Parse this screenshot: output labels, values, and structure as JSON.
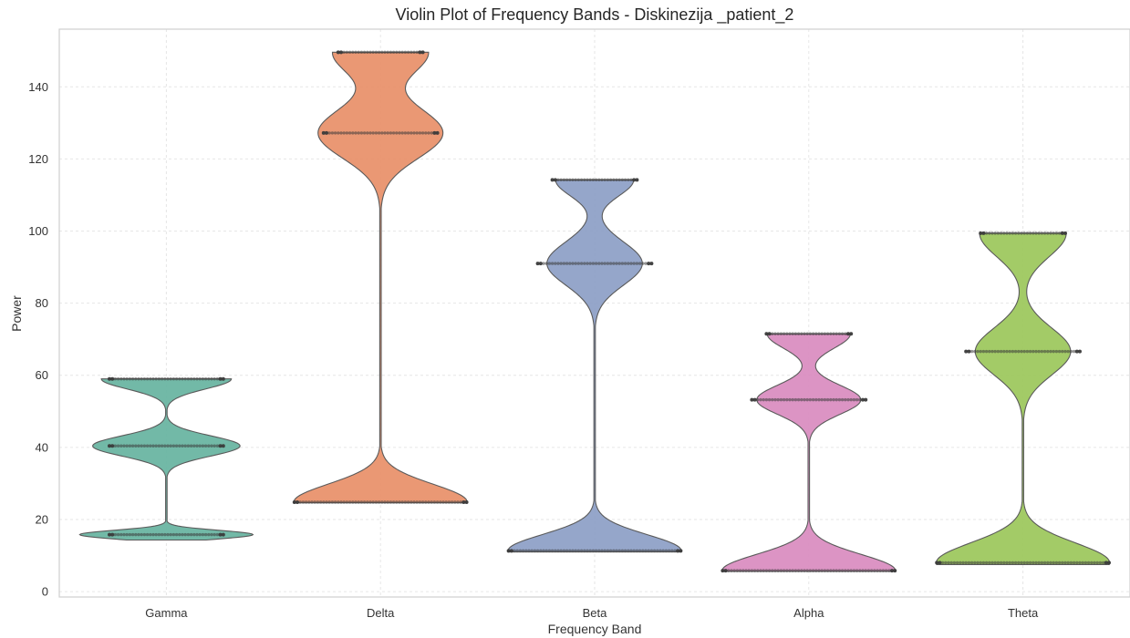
{
  "chart_data": {
    "type": "violin",
    "title": "Violin Plot of Frequency Bands - Diskinezija _patient_2",
    "xlabel": "Frequency Band",
    "ylabel": "Power",
    "ylim": [
      -1.5,
      156
    ],
    "yticks": [
      0,
      20,
      40,
      60,
      80,
      100,
      120,
      140
    ],
    "grid": true,
    "categories": [
      "Gamma",
      "Delta",
      "Beta",
      "Alpha",
      "Theta"
    ],
    "colors": [
      "#66b3a0",
      "#e88f68",
      "#8c9ec6",
      "#d98bbf",
      "#9bc75a"
    ],
    "series": [
      {
        "category": "Gamma",
        "min": 14.3,
        "max": 59.0,
        "clusters": [
          {
            "value": 15.8,
            "count": 40,
            "spread": 1.2,
            "weight": 1.0
          },
          {
            "value": 40.4,
            "count": 40,
            "spread": 2.8,
            "weight": 0.85
          },
          {
            "value": 59.0,
            "count": 40,
            "spread": 2.8,
            "weight": 0.75
          }
        ]
      },
      {
        "category": "Delta",
        "min": 24.6,
        "max": 149.6,
        "clusters": [
          {
            "value": 24.8,
            "count": 60,
            "spread": 5.0,
            "weight": 1.0
          },
          {
            "value": 127.2,
            "count": 40,
            "spread": 7.0,
            "weight": 0.72
          },
          {
            "value": 149.6,
            "count": 30,
            "spread": 6.0,
            "weight": 0.55
          }
        ]
      },
      {
        "category": "Beta",
        "min": 11.0,
        "max": 114.2,
        "clusters": [
          {
            "value": 11.3,
            "count": 60,
            "spread": 4.5,
            "weight": 1.0
          },
          {
            "value": 91.0,
            "count": 40,
            "spread": 6.0,
            "weight": 0.55
          },
          {
            "value": 114.2,
            "count": 30,
            "spread": 4.5,
            "weight": 0.45
          }
        ]
      },
      {
        "category": "Alpha",
        "min": 5.6,
        "max": 71.5,
        "clusters": [
          {
            "value": 5.8,
            "count": 60,
            "spread": 4.5,
            "weight": 1.0
          },
          {
            "value": 53.2,
            "count": 40,
            "spread": 4.0,
            "weight": 0.6
          },
          {
            "value": 71.5,
            "count": 30,
            "spread": 4.0,
            "weight": 0.48
          }
        ]
      },
      {
        "category": "Theta",
        "min": 7.5,
        "max": 99.4,
        "clusters": [
          {
            "value": 8.0,
            "count": 60,
            "spread": 5.5,
            "weight": 1.0
          },
          {
            "value": 66.6,
            "count": 40,
            "spread": 6.5,
            "weight": 0.55
          },
          {
            "value": 99.4,
            "count": 30,
            "spread": 6.5,
            "weight": 0.5
          }
        ]
      }
    ]
  }
}
